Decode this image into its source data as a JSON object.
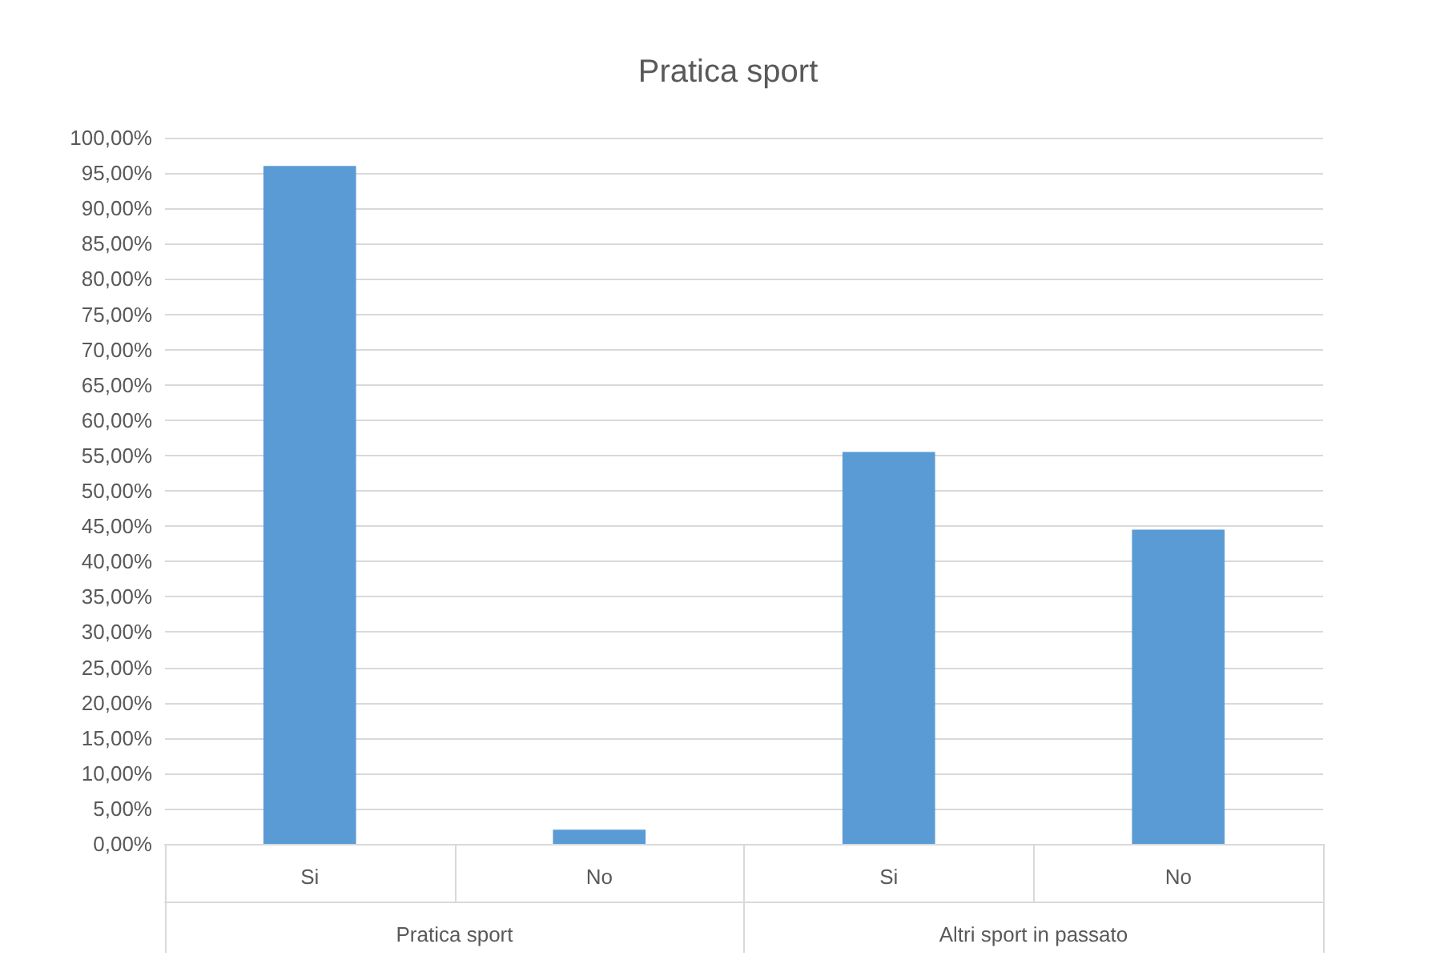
{
  "chart_data": {
    "type": "bar",
    "title": "Pratica sport",
    "categories": [
      "Si",
      "No",
      "Si",
      "No"
    ],
    "values": [
      96,
      2,
      55.5,
      44.5
    ],
    "color": "#5b9bd5",
    "ylim": [
      0,
      100
    ],
    "yticks": [
      {
        "value": 0,
        "label": "0,00%"
      },
      {
        "value": 5,
        "label": "5,00%"
      },
      {
        "value": 10,
        "label": "10,00%"
      },
      {
        "value": 15,
        "label": "15,00%"
      },
      {
        "value": 20,
        "label": "20,00%"
      },
      {
        "value": 25,
        "label": "25,00%"
      },
      {
        "value": 30,
        "label": "30,00%"
      },
      {
        "value": 35,
        "label": "35,00%"
      },
      {
        "value": 40,
        "label": "40,00%"
      },
      {
        "value": 45,
        "label": "45,00%"
      },
      {
        "value": 50,
        "label": "50,00%"
      },
      {
        "value": 55,
        "label": "55,00%"
      },
      {
        "value": 60,
        "label": "60,00%"
      },
      {
        "value": 65,
        "label": "65,00%"
      },
      {
        "value": 70,
        "label": "70,00%"
      },
      {
        "value": 75,
        "label": "75,00%"
      },
      {
        "value": 80,
        "label": "80,00%"
      },
      {
        "value": 85,
        "label": "85,00%"
      },
      {
        "value": 90,
        "label": "90,00%"
      },
      {
        "value": 95,
        "label": "95,00%"
      },
      {
        "value": 100,
        "label": "100,00%"
      }
    ],
    "annotations": [
      "Pratica sport",
      "Altri sport in passato"
    ],
    "grid": "y"
  }
}
